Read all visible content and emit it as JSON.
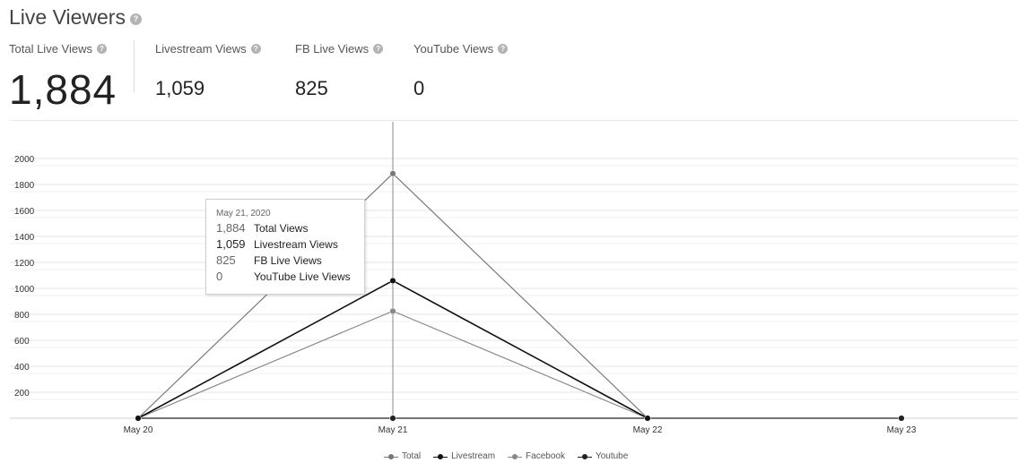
{
  "header": {
    "title": "Live Viewers"
  },
  "metrics": {
    "total": {
      "label": "Total Live Views",
      "value": "1,884"
    },
    "livestream": {
      "label": "Livestream Views",
      "value": "1,059"
    },
    "fb": {
      "label": "FB Live Views",
      "value": "825"
    },
    "youtube": {
      "label": "YouTube Views",
      "value": "0"
    }
  },
  "icons": {
    "help": "question-circle-icon"
  },
  "chart_data": {
    "type": "line",
    "x": [
      "May 20",
      "May 21",
      "May 22",
      "May 23"
    ],
    "ylim": [
      0,
      2100
    ],
    "yticks": [
      "200",
      "400",
      "600",
      "800",
      "1000",
      "1200",
      "1400",
      "1600",
      "1800",
      "2000"
    ],
    "series": [
      {
        "name": "Total",
        "values": [
          0,
          1884,
          0,
          null
        ],
        "color": "#777777"
      },
      {
        "name": "Livestream",
        "values": [
          0,
          1059,
          0,
          null
        ],
        "color": "#111111"
      },
      {
        "name": "Facebook",
        "values": [
          0,
          825,
          0,
          null
        ],
        "color": "#888888"
      },
      {
        "name": "Youtube",
        "values": [
          0,
          0,
          0,
          0
        ],
        "color": "#222222"
      }
    ],
    "grid": true,
    "legend": "bottom-center",
    "tooltip": {
      "date": "May 21, 2020",
      "rows": [
        {
          "value": "1,884",
          "label": "Total Views"
        },
        {
          "value": "1,059",
          "label": "Livestream Views"
        },
        {
          "value": "825",
          "label": "FB Live Views"
        },
        {
          "value": "0",
          "label": "YouTube Live Views"
        }
      ]
    }
  }
}
